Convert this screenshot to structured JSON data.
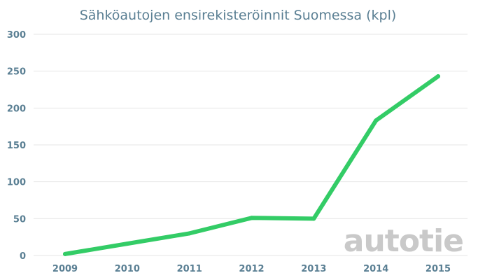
{
  "chart_data": {
    "type": "line",
    "title": "Sähköautojen ensirekisteröinnit Suomessa (kpl)",
    "categories": [
      "2009",
      "2010",
      "2011",
      "2012",
      "2013",
      "2014",
      "2015"
    ],
    "series": [
      {
        "values": [
          2,
          16,
          30,
          51,
          50,
          183,
          243
        ]
      }
    ],
    "ylim": [
      0,
      300
    ],
    "yticks": [
      0,
      50,
      100,
      150,
      200,
      250,
      300
    ],
    "grid": true,
    "line_color": "#33cc66"
  },
  "watermark": "autotie"
}
